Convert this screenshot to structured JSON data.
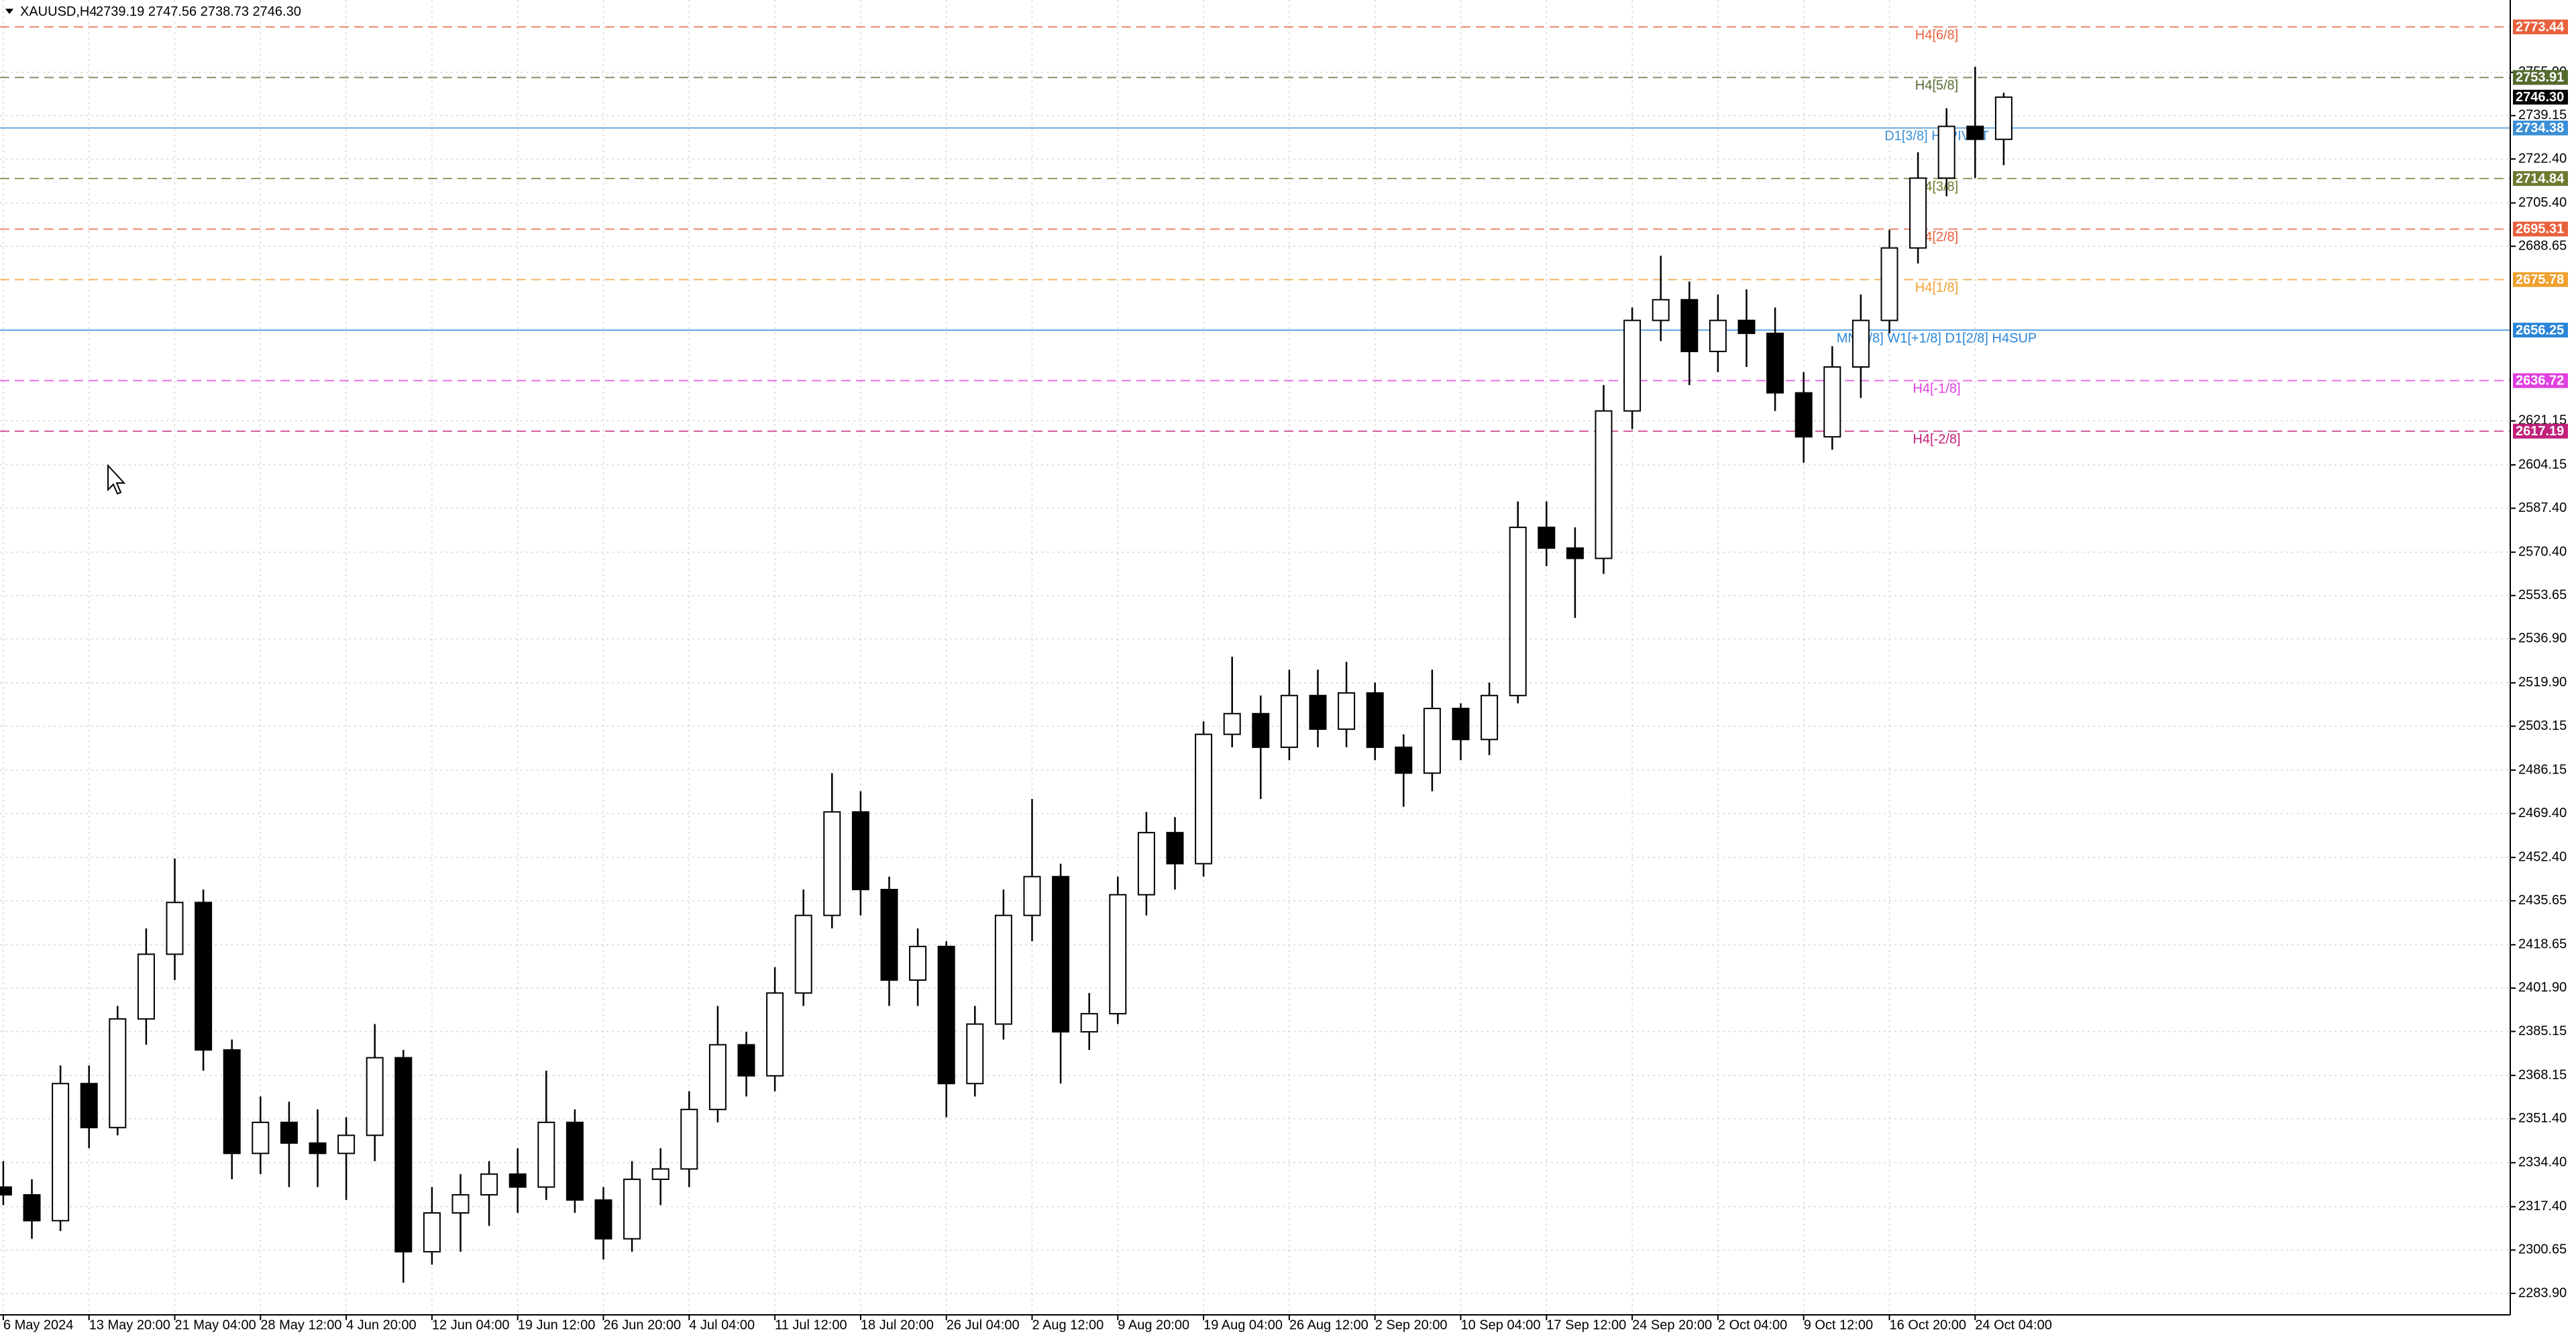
{
  "chart_data": {
    "type": "candlestick",
    "title": "XAUUSD,H4",
    "ohlc_text": "2739.19 2747.56 2738.73 2746.30",
    "categories": [
      "6 May 2024",
      null,
      null,
      "13 May 20:00",
      null,
      null,
      "21 May 04:00",
      null,
      null,
      "28 May 12:00",
      null,
      null,
      "4 Jun 20:00",
      null,
      null,
      "12 Jun 04:00",
      null,
      null,
      "19 Jun 12:00",
      null,
      null,
      "26 Jun 20:00",
      null,
      null,
      "4 Jul 04:00",
      null,
      null,
      "11 Jul 12:00",
      null,
      null,
      "18 Jul 20:00",
      null,
      null,
      "26 Jul 04:00",
      null,
      null,
      "2 Aug 12:00",
      null,
      null,
      "9 Aug 20:00",
      null,
      null,
      "19 Aug 04:00",
      null,
      null,
      "26 Aug 12:00",
      null,
      null,
      "2 Sep 20:00",
      null,
      null,
      "10 Sep 04:00",
      null,
      null,
      "17 Sep 12:00",
      null,
      null,
      "24 Sep 20:00",
      null,
      null,
      "2 Oct 04:00",
      null,
      null,
      "9 Oct 12:00",
      null,
      null,
      "16 Oct 20:00",
      null,
      null,
      "24 Oct 04:00",
      null
    ],
    "open": [
      2325,
      2322,
      2312,
      2365,
      2348,
      2390,
      2415,
      2435,
      2378,
      2338,
      2350,
      2342,
      2338,
      2345,
      2375,
      2300,
      2315,
      2322,
      2330,
      2325,
      2350,
      2320,
      2305,
      2328,
      2332,
      2355,
      2380,
      2368,
      2400,
      2430,
      2470,
      2440,
      2405,
      2418,
      2365,
      2388,
      2430,
      2445,
      2385,
      2392,
      2438,
      2462,
      2450,
      2500,
      2508,
      2495,
      2515,
      2502,
      2516,
      2495,
      2485,
      2510,
      2498,
      2515,
      2580,
      2572,
      2568,
      2625,
      2660,
      2668,
      2648,
      2660,
      2655,
      2632,
      2615,
      2642,
      2660,
      2688,
      2715,
      2735,
      2730
    ],
    "high": [
      2335,
      2328,
      2372,
      2372,
      2395,
      2425,
      2452,
      2440,
      2382,
      2360,
      2358,
      2355,
      2352,
      2388,
      2378,
      2325,
      2330,
      2335,
      2340,
      2370,
      2355,
      2325,
      2335,
      2340,
      2362,
      2395,
      2385,
      2410,
      2440,
      2485,
      2478,
      2445,
      2425,
      2420,
      2395,
      2440,
      2475,
      2450,
      2400,
      2445,
      2470,
      2468,
      2505,
      2530,
      2515,
      2525,
      2525,
      2528,
      2520,
      2500,
      2525,
      2512,
      2520,
      2590,
      2590,
      2580,
      2635,
      2665,
      2685,
      2675,
      2670,
      2672,
      2665,
      2640,
      2650,
      2670,
      2695,
      2725,
      2742,
      2758,
      2748
    ],
    "low": [
      2318,
      2305,
      2308,
      2340,
      2345,
      2380,
      2405,
      2370,
      2328,
      2330,
      2325,
      2325,
      2320,
      2335,
      2288,
      2295,
      2300,
      2310,
      2315,
      2320,
      2315,
      2297,
      2300,
      2318,
      2325,
      2350,
      2360,
      2362,
      2395,
      2425,
      2430,
      2395,
      2395,
      2352,
      2360,
      2382,
      2420,
      2365,
      2378,
      2388,
      2430,
      2440,
      2445,
      2495,
      2475,
      2490,
      2495,
      2495,
      2490,
      2472,
      2478,
      2490,
      2492,
      2512,
      2565,
      2545,
      2562,
      2618,
      2652,
      2635,
      2640,
      2642,
      2625,
      2605,
      2610,
      2630,
      2655,
      2682,
      2708,
      2715,
      2720
    ],
    "close": [
      2322,
      2312,
      2365,
      2348,
      2390,
      2415,
      2435,
      2378,
      2338,
      2350,
      2342,
      2338,
      2345,
      2375,
      2300,
      2315,
      2322,
      2330,
      2325,
      2350,
      2320,
      2305,
      2328,
      2332,
      2355,
      2380,
      2368,
      2400,
      2430,
      2470,
      2440,
      2405,
      2418,
      2365,
      2388,
      2430,
      2445,
      2385,
      2392,
      2438,
      2462,
      2450,
      2500,
      2508,
      2495,
      2515,
      2502,
      2516,
      2495,
      2485,
      2510,
      2498,
      2515,
      2580,
      2572,
      2568,
      2625,
      2660,
      2668,
      2648,
      2660,
      2655,
      2632,
      2615,
      2642,
      2660,
      2688,
      2715,
      2735,
      2730,
      2746.3
    ],
    "up_color": "#ffffff",
    "down_color": "#000000",
    "outline_color": "#000000",
    "ylim": [
      2275.6,
      2783.85
    ],
    "yticks": [
      {
        "value": 2283.9,
        "label": "2283.90"
      },
      {
        "value": 2300.65,
        "label": "2300.65"
      },
      {
        "value": 2317.4,
        "label": "2317.40"
      },
      {
        "value": 2334.4,
        "label": "2334.40"
      },
      {
        "value": 2351.4,
        "label": "2351.40"
      },
      {
        "value": 2368.15,
        "label": "2368.15"
      },
      {
        "value": 2385.15,
        "label": "2385.15"
      },
      {
        "value": 2401.9,
        "label": "2401.90"
      },
      {
        "value": 2418.65,
        "label": "2418.65"
      },
      {
        "value": 2435.65,
        "label": "2435.65"
      },
      {
        "value": 2452.4,
        "label": "2452.40"
      },
      {
        "value": 2469.4,
        "label": "2469.40"
      },
      {
        "value": 2486.15,
        "label": "2486.15"
      },
      {
        "value": 2503.15,
        "label": "2503.15"
      },
      {
        "value": 2519.9,
        "label": "2519.90"
      },
      {
        "value": 2536.9,
        "label": "2536.90"
      },
      {
        "value": 2553.65,
        "label": "2553.65"
      },
      {
        "value": 2570.4,
        "label": "2570.40"
      },
      {
        "value": 2587.4,
        "label": "2587.40"
      },
      {
        "value": 2604.15,
        "label": "2604.15"
      },
      {
        "value": 2621.15,
        "label": "2621.15"
      },
      {
        "value": 2688.65,
        "label": "2688.65"
      },
      {
        "value": 2705.4,
        "label": "2705.40"
      },
      {
        "value": 2722.4,
        "label": "2722.40"
      },
      {
        "value": 2739.15,
        "label": "2739.15"
      },
      {
        "value": 2755.9,
        "label": "2755.90"
      }
    ],
    "grid": true,
    "levels": [
      {
        "label": "H4[6/8]",
        "value": 2773.44,
        "value_label": "2773.44",
        "color": "#e8603c",
        "style": "dashed"
      },
      {
        "label": "H4[5/8]",
        "value": 2753.91,
        "value_label": "2753.91",
        "color": "#556b2f",
        "style": "dashed"
      },
      {
        "label": "D1[3/8] H4PIVOT",
        "value": 2734.38,
        "value_label": "2734.38",
        "color": "#3b8fd6",
        "style": "solid"
      },
      {
        "label": "H4[3/8]",
        "value": 2714.84,
        "value_label": "2714.84",
        "color": "#6b7a2f",
        "style": "dashed"
      },
      {
        "label": "H4[2/8]",
        "value": 2695.31,
        "value_label": "2695.31",
        "color": "#e8603c",
        "style": "dashed"
      },
      {
        "label": "H4[1/8]",
        "value": 2675.78,
        "value_label": "2675.78",
        "color": "#f0a030",
        "style": "dashed"
      },
      {
        "label": "MN[1/8] W1[+1/8] D1[2/8] H4SUP",
        "value": 2656.25,
        "value_label": "2656.25",
        "color": "#2a86d8",
        "style": "solid"
      },
      {
        "label": "H4[-1/8]",
        "value": 2636.72,
        "value_label": "2636.72",
        "color": "#e040e0",
        "style": "dashed"
      },
      {
        "label": "H4[-2/8]",
        "value": 2617.19,
        "value_label": "2617.19",
        "color": "#c0207a",
        "style": "dashed"
      }
    ],
    "last_price": {
      "value": 2746.3,
      "label": "2746.30",
      "color": "#000000"
    }
  }
}
